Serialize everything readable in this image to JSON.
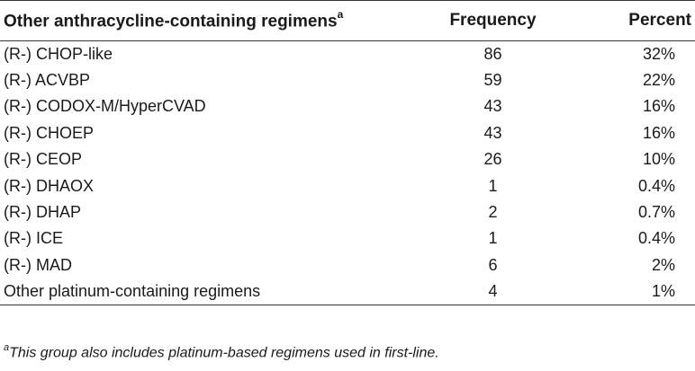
{
  "table": {
    "headers": {
      "regimen": "Other anthracycline-containing regimens",
      "regimen_marker": "a",
      "frequency": "Frequency",
      "percent": "Percent"
    },
    "rows": [
      {
        "regimen": "(R-) CHOP-like",
        "frequency": "86",
        "percent": "32%"
      },
      {
        "regimen": "(R-) ACVBP",
        "frequency": "59",
        "percent": "22%"
      },
      {
        "regimen": "(R-) CODOX-M/HyperCVAD",
        "frequency": "43",
        "percent": "16%"
      },
      {
        "regimen": "(R-) CHOEP",
        "frequency": "43",
        "percent": "16%"
      },
      {
        "regimen": "(R-) CEOP",
        "frequency": "26",
        "percent": "10%"
      },
      {
        "regimen": "(R-) DHAOX",
        "frequency": "1",
        "percent": "0.4%"
      },
      {
        "regimen": "(R-) DHAP",
        "frequency": "2",
        "percent": "0.7%"
      },
      {
        "regimen": "(R-) ICE",
        "frequency": "1",
        "percent": "0.4%"
      },
      {
        "regimen": "(R-) MAD",
        "frequency": "6",
        "percent": "2%"
      },
      {
        "regimen": "Other platinum-containing regimens",
        "frequency": "4",
        "percent": "1%"
      }
    ]
  },
  "footnote": {
    "marker": "a",
    "text": "This group also includes platinum-based regimens used in first-line."
  }
}
